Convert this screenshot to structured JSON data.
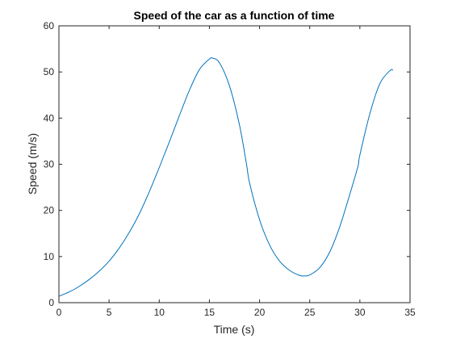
{
  "chart_data": {
    "type": "line",
    "title": "Speed of the car as a function of time",
    "xlabel": "Time (s)",
    "ylabel": "Speed (m/s)",
    "xlim": [
      0,
      35
    ],
    "ylim": [
      0,
      60
    ],
    "xticks": [
      0,
      5,
      10,
      15,
      20,
      25,
      30,
      35
    ],
    "yticks": [
      0,
      10,
      20,
      30,
      40,
      50,
      60
    ],
    "grid": false,
    "line_color": "#0072bd",
    "series": [
      {
        "x": [
          0,
          1,
          2,
          3,
          4,
          5,
          6,
          7,
          8,
          9,
          10,
          11,
          12,
          13,
          14,
          15,
          15.3,
          16,
          17,
          18,
          18.7,
          19,
          20,
          21,
          22,
          23,
          24,
          24.5,
          25,
          26,
          27,
          28,
          29,
          29.8,
          30,
          31,
          32,
          33,
          33.3
        ],
        "y": [
          1.4,
          2.3,
          3.5,
          5.0,
          6.8,
          9.0,
          11.8,
          15.2,
          19.2,
          24.0,
          29.3,
          34.8,
          40.5,
          46.0,
          50.5,
          52.8,
          53.0,
          52.0,
          47.0,
          38.5,
          30.0,
          26.0,
          18.0,
          12.5,
          9.0,
          7.0,
          5.9,
          5.8,
          6.0,
          7.6,
          11.0,
          16.5,
          23.5,
          29.5,
          32.0,
          41.0,
          47.5,
          50.3,
          50.4
        ]
      }
    ]
  }
}
